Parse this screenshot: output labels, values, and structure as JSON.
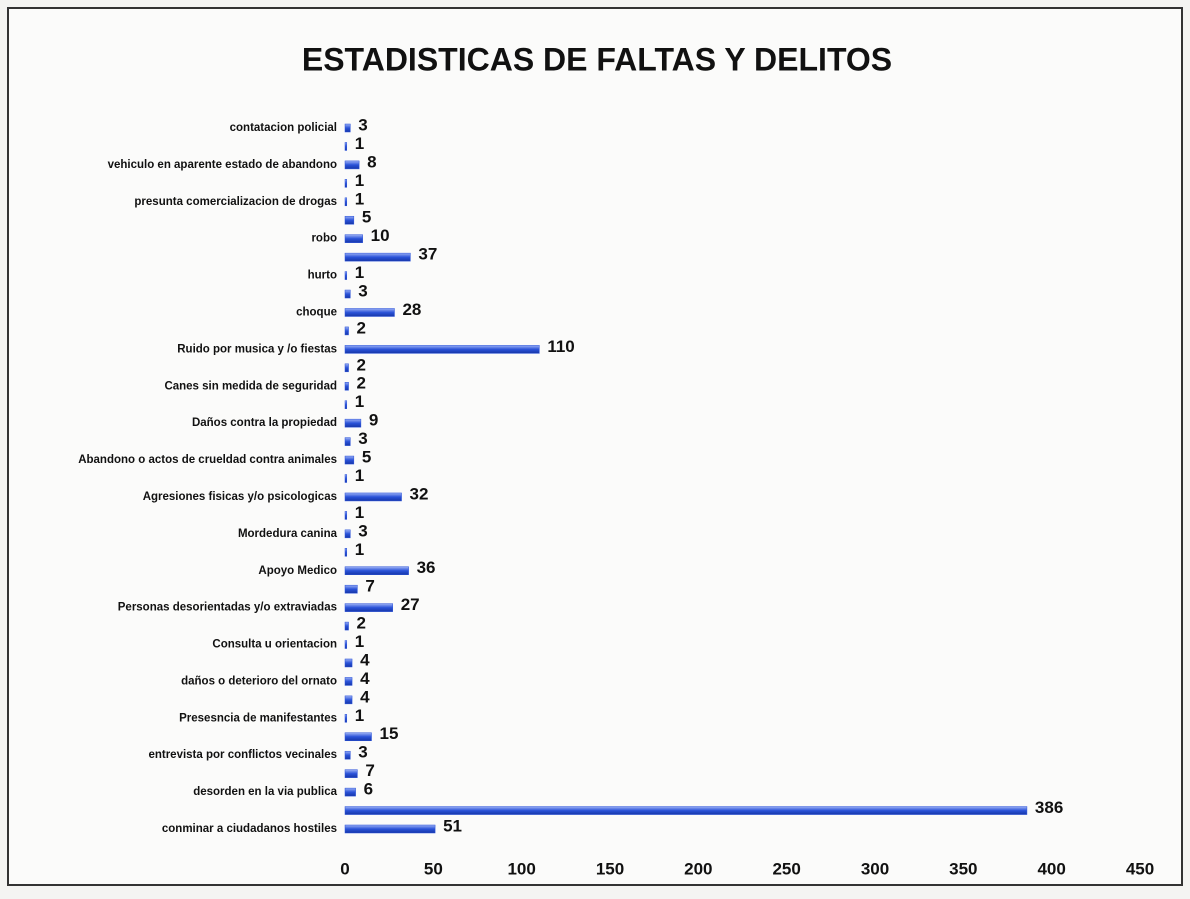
{
  "chart_data": {
    "type": "bar",
    "orientation": "horizontal",
    "title": "ESTADISTICAS DE FALTAS Y DELITOS",
    "categories": [
      "contatacion policial",
      null,
      "vehiculo en aparente estado de abandono",
      null,
      "presunta comercializacion de drogas",
      null,
      "robo",
      null,
      "hurto",
      null,
      "choque",
      null,
      "Ruido por musica y /o fiestas",
      null,
      "Canes sin medida de seguridad",
      null,
      "Daños contra la propiedad",
      null,
      "Abandono o actos de crueldad contra animales",
      null,
      "Agresiones fisicas y/o psicologicas",
      null,
      "Mordedura  canina",
      null,
      "Apoyo Medico",
      null,
      "Personas desorientadas y/o extraviadas",
      null,
      "Consulta u orientacion",
      null,
      "daños o deterioro  del ornato",
      null,
      "Presesncia de manifestantes",
      null,
      "entrevista por conflictos vecinales",
      null,
      "desorden en la via publica",
      null,
      "conminar a ciudadanos hostiles"
    ],
    "values": [
      3,
      1,
      8,
      1,
      1,
      5,
      10,
      37,
      1,
      3,
      28,
      2,
      110,
      2,
      2,
      1,
      9,
      3,
      5,
      1,
      32,
      1,
      3,
      1,
      36,
      7,
      27,
      2,
      1,
      4,
      4,
      4,
      1,
      15,
      3,
      7,
      6,
      386,
      51
    ],
    "color": "#2a52d8",
    "xlim": [
      0,
      450
    ],
    "xticks": [
      0,
      50,
      100,
      150,
      200,
      250,
      300,
      350,
      400,
      450
    ],
    "grid": false
  }
}
